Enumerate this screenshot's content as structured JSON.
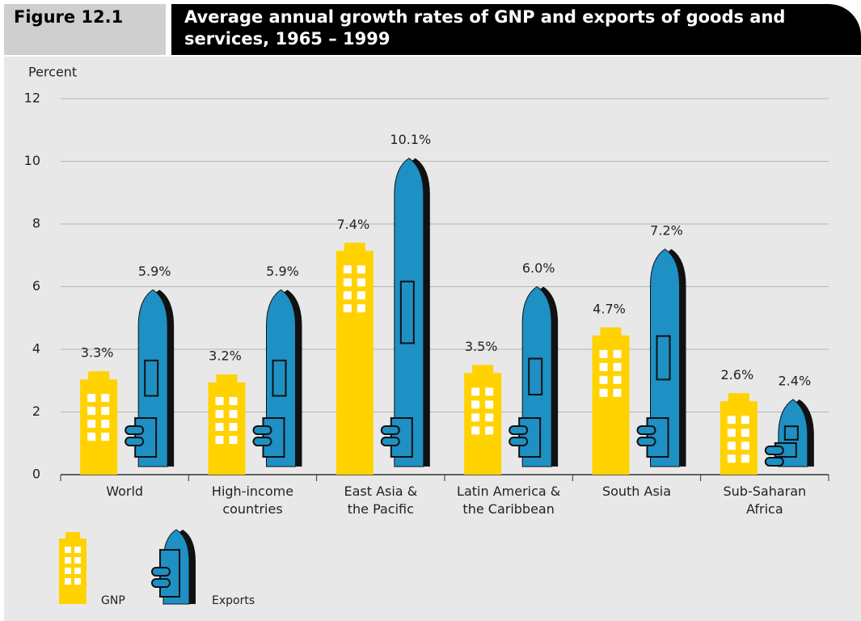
{
  "chart_data": {
    "type": "bar",
    "figure_label": "Figure 12.1",
    "title": "Average annual growth rates of GNP and exports of goods and services, 1965 – 1999",
    "y_axis_label": "Percent",
    "categories": [
      "World",
      "High-income\ncountries",
      "East Asia &\nthe Pacific",
      "Latin America &\nthe Caribbean",
      "South Asia",
      "Sub-Saharan\nAfrica"
    ],
    "series": [
      {
        "name": "GNP",
        "color": "#ffd200",
        "values": [
          3.3,
          3.2,
          7.4,
          3.5,
          4.7,
          2.6
        ],
        "value_labels": [
          "3.3%",
          "3.2%",
          "7.4%",
          "3.5%",
          "4.7%",
          "2.6%"
        ]
      },
      {
        "name": "Exports",
        "color": "#1e90c3",
        "values": [
          5.9,
          5.9,
          10.1,
          6.0,
          7.2,
          2.4
        ],
        "value_labels": [
          "5.9%",
          "5.9%",
          "10.1%",
          "6.0%",
          "7.2%",
          "2.4%"
        ]
      }
    ],
    "ylim": [
      0,
      12
    ],
    "yticks": [
      0,
      2,
      4,
      6,
      8,
      10,
      12
    ],
    "grid": true
  }
}
